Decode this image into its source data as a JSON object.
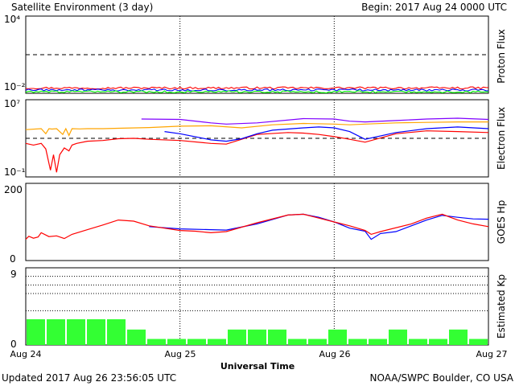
{
  "header": {
    "title": "Satellite Environment (3 day)",
    "begin": "Begin:  2017 Aug 24 0000 UTC"
  },
  "footer": {
    "updated": "Updated 2017 Aug 26 23:56:05 UTC",
    "credit": "NOAA/SWPC Boulder, CO USA"
  },
  "colors": {
    "red": "#ff0000",
    "blue": "#0000ff",
    "green": "#00ff00",
    "orange": "#ffa500",
    "purple": "#7f00ff",
    "kp_bar": "#33ff33"
  },
  "chart_data": [
    {
      "type": "line",
      "panel": "proton",
      "ylabel": "Proton Flux",
      "yscale": "log",
      "ylim": [
        0.01,
        10000
      ],
      "y_tick_labels": [
        "10⁴",
        "10⁻²"
      ],
      "threshold": 10,
      "series": [
        {
          "color": "red",
          "x_days": [
            0,
            3
          ],
          "y": [
            0.026,
            0.026
          ],
          "noise": 0.08
        },
        {
          "color": "blue",
          "x_days": [
            0,
            3
          ],
          "y": [
            0.018,
            0.018
          ],
          "noise": 0.08
        },
        {
          "color": "green",
          "x_days": [
            0,
            3
          ],
          "y": [
            0.013,
            0.013
          ],
          "noise": 0.08
        }
      ]
    },
    {
      "type": "line",
      "panel": "electron",
      "ylabel": "Electron Flux",
      "yscale": "log",
      "ylim": [
        0.1,
        10000000
      ],
      "y_tick_labels": [
        "10⁷",
        "10⁻¹"
      ],
      "threshold": 1000,
      "series": [
        {
          "color": "orange",
          "x_days": [
            0,
            0.1,
            0.13,
            0.15,
            0.17,
            0.2,
            0.24,
            0.26,
            0.28,
            0.3,
            0.35,
            0.4,
            0.5,
            0.6,
            0.8,
            1.0,
            1.2,
            1.4,
            1.6,
            1.8,
            2.0,
            2.1,
            2.2,
            2.4,
            2.6,
            2.8,
            3.0
          ],
          "y": [
            8000,
            10000,
            3000,
            10000,
            9000,
            10000,
            2500,
            10000,
            2000,
            10000,
            9500,
            10000,
            10000,
            11000,
            13000,
            18000,
            20000,
            12000,
            25000,
            35000,
            30000,
            25000,
            30000,
            40000,
            45000,
            50000,
            50000
          ]
        },
        {
          "color": "red",
          "x_days": [
            0,
            0.05,
            0.1,
            0.13,
            0.16,
            0.18,
            0.2,
            0.22,
            0.25,
            0.28,
            0.3,
            0.33,
            0.4,
            0.5,
            0.6,
            0.7,
            0.8,
            1.0,
            1.2,
            1.3,
            1.5,
            1.7,
            1.8,
            1.9,
            2.0,
            2.1,
            2.2,
            2.4,
            2.6,
            2.8,
            3.0
          ],
          "y": [
            300,
            200,
            300,
            80,
            0.5,
            20,
            0.3,
            20,
            100,
            50,
            200,
            300,
            500,
            600,
            900,
            1000,
            800,
            600,
            300,
            250,
            2500,
            4000,
            3500,
            2500,
            1500,
            800,
            400,
            3000,
            6000,
            5000,
            4000
          ]
        },
        {
          "color": "blue",
          "x_days": [
            0.9,
            1.0,
            1.2,
            1.3,
            1.4,
            1.5,
            1.6,
            1.8,
            1.9,
            2.0,
            2.1,
            2.2,
            2.4,
            2.6,
            2.8,
            3.0
          ],
          "y": [
            5000,
            3000,
            700,
            500,
            900,
            3000,
            7000,
            12000,
            15000,
            12000,
            5000,
            800,
            4000,
            10000,
            15000,
            10000
          ]
        },
        {
          "color": "purple",
          "x_days": [
            0.75,
            1.0,
            1.2,
            1.3,
            1.5,
            1.8,
            2.0,
            2.1,
            2.2,
            2.4,
            2.6,
            2.8,
            3.0
          ],
          "y": [
            100000,
            90000,
            40000,
            30000,
            40000,
            110000,
            100000,
            60000,
            50000,
            70000,
            100000,
            120000,
            90000
          ]
        }
      ]
    },
    {
      "type": "line",
      "panel": "goes_hp",
      "ylabel": "GOES Hp",
      "ylim": [
        0,
        200
      ],
      "y_tick_labels": [
        "200",
        "0"
      ],
      "series": [
        {
          "color": "blue",
          "x_days": [
            0.8,
            1.0,
            1.2,
            1.3,
            1.5,
            1.7,
            1.8,
            1.9,
            2.0,
            2.1,
            2.2,
            2.24,
            2.3,
            2.4,
            2.5,
            2.6,
            2.7,
            2.8,
            2.9,
            3.0
          ],
          "y": [
            88,
            82,
            80,
            79,
            95,
            118,
            120,
            112,
            100,
            84,
            76,
            55,
            70,
            75,
            90,
            105,
            117,
            112,
            108,
            107
          ]
        },
        {
          "color": "red",
          "x_days": [
            0,
            0.02,
            0.05,
            0.08,
            0.1,
            0.15,
            0.2,
            0.25,
            0.3,
            0.4,
            0.5,
            0.6,
            0.7,
            0.8,
            1.0,
            1.1,
            1.2,
            1.3,
            1.5,
            1.7,
            1.8,
            1.9,
            2.0,
            2.1,
            2.2,
            2.24,
            2.3,
            2.5,
            2.6,
            2.7,
            2.8,
            2.9,
            3.0
          ],
          "y": [
            55,
            63,
            58,
            61,
            72,
            62,
            64,
            57,
            68,
            80,
            92,
            105,
            102,
            90,
            78,
            76,
            72,
            75,
            98,
            118,
            120,
            110,
            100,
            90,
            78,
            68,
            75,
            95,
            110,
            120,
            105,
            95,
            88
          ]
        }
      ]
    },
    {
      "type": "bar",
      "panel": "kp",
      "ylabel": "Estimated Kp",
      "ylim": [
        0,
        9
      ],
      "y_tick_labels": [
        "9",
        "0"
      ],
      "guides": [
        4,
        6,
        7,
        8
      ],
      "values": [
        3,
        3,
        3,
        3,
        3,
        1.8,
        0.7,
        0.7,
        0.7,
        0.7,
        1.8,
        1.8,
        1.8,
        0.7,
        0.7,
        1.8,
        0.7,
        0.7,
        1.8,
        0.7,
        0.7,
        1.8,
        0.7
      ]
    }
  ],
  "x_axis": {
    "tick_labels": [
      "Aug 24",
      "Aug 25",
      "Aug 26",
      "Aug 27"
    ],
    "xlabel": "Universal Time"
  }
}
